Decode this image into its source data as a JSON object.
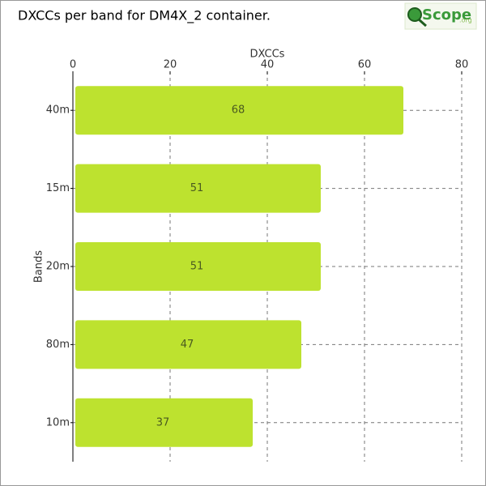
{
  "chart_data": {
    "type": "bar",
    "orientation": "horizontal",
    "title": "DXCCs per band for DM4X_2 container.",
    "logo": "Scope",
    "logo_suffix": ".org",
    "xlabel": "DXCCs",
    "ylabel": "Bands",
    "categories": [
      "40m",
      "15m",
      "20m",
      "80m",
      "10m"
    ],
    "values": [
      68,
      51,
      51,
      47,
      37
    ],
    "color": "#bde22f",
    "xlim": [
      0,
      80
    ],
    "xticks": [
      0,
      20,
      40,
      60,
      80
    ],
    "grid": true
  }
}
